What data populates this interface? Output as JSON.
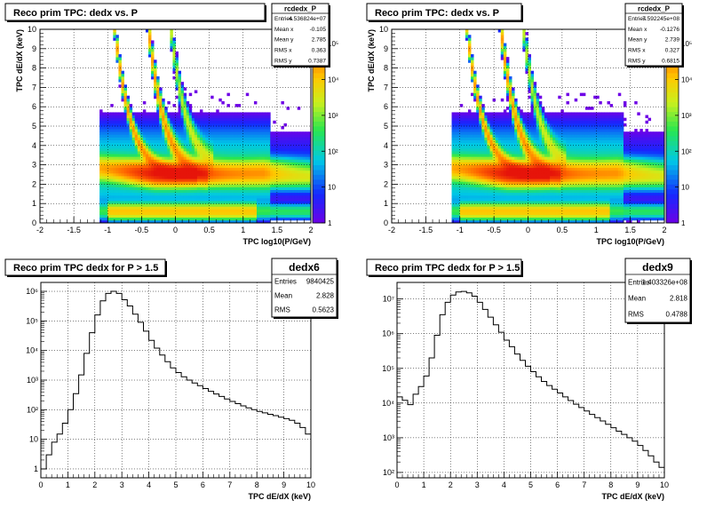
{
  "chart_data": [
    {
      "type": "heatmap",
      "title": "Reco prim TPC: dedx vs. P",
      "xlabel": "TPC log10(P/GeV)",
      "ylabel": "TPC dE/dX (keV)",
      "xlim": [
        -2,
        2
      ],
      "ylim": [
        0,
        10
      ],
      "x_ticks": [
        "-2",
        "-1.5",
        "-1",
        "-0.5",
        "0",
        "0.5",
        "1",
        "1.5",
        "2"
      ],
      "y_ticks": [
        "0",
        "1",
        "2",
        "3",
        "4",
        "5",
        "6",
        "7",
        "8",
        "9",
        "10"
      ],
      "zscale": "log",
      "z_ticks": [
        "1",
        "10",
        "10²",
        "10³",
        "10⁴",
        "10⁵"
      ],
      "grid": true,
      "stats": {
        "name": "rcdedx_P",
        "rows": [
          {
            "label": "Entries",
            "value": "4.536824e+07"
          },
          {
            "label": "Mean x",
            "value": "-0.105"
          },
          {
            "label": "Mean y",
            "value": "2.785"
          },
          {
            "label": "RMS x",
            "value": "0.363"
          },
          {
            "label": "RMS y",
            "value": "0.7387"
          }
        ]
      }
    },
    {
      "type": "heatmap",
      "title": "Reco prim TPC: dedx vs. P",
      "xlabel": "TPC log10(P/GeV)",
      "ylabel": "TPC dE/dX (keV)",
      "xlim": [
        -2,
        2
      ],
      "ylim": [
        0,
        10
      ],
      "x_ticks": [
        "-2",
        "-1.5",
        "-1",
        "-0.5",
        "0",
        "0.5",
        "1",
        "1.5",
        "2"
      ],
      "y_ticks": [
        "0",
        "1",
        "2",
        "3",
        "4",
        "5",
        "6",
        "7",
        "8",
        "9",
        "10"
      ],
      "zscale": "log",
      "z_ticks": [
        "1",
        "10",
        "10²",
        "10³",
        "10⁴",
        "10⁵"
      ],
      "grid": true,
      "stats": {
        "name": "rcdedx_P",
        "rows": [
          {
            "label": "Entries",
            "value": "7.592245e+08"
          },
          {
            "label": "Mean x",
            "value": "-0.1276"
          },
          {
            "label": "Mean y",
            "value": "2.739"
          },
          {
            "label": "RMS x",
            "value": "0.327"
          },
          {
            "label": "RMS y",
            "value": "0.6815"
          }
        ]
      }
    },
    {
      "type": "line",
      "title": "Reco prim TPC dedx for P > 1.5",
      "xlabel": "TPC dE/dX (keV)",
      "ylabel": "",
      "xlim": [
        0,
        10
      ],
      "yscale": "log",
      "ylim": [
        0.5,
        2000000
      ],
      "x_ticks": [
        "0",
        "1",
        "2",
        "3",
        "4",
        "5",
        "6",
        "7",
        "8",
        "9",
        "10"
      ],
      "y_ticks": [
        "1",
        "10",
        "10²",
        "10³",
        "10⁴",
        "10⁵",
        "10⁶"
      ],
      "grid": true,
      "stats": {
        "name": "dedx6",
        "rows": [
          {
            "label": "Entries",
            "value": "9840425"
          },
          {
            "label": "Mean",
            "value": "2.828"
          },
          {
            "label": "RMS",
            "value": "0.5623"
          }
        ]
      },
      "x": [
        0.1,
        0.3,
        0.5,
        0.7,
        0.9,
        1.1,
        1.3,
        1.5,
        1.7,
        1.9,
        2.1,
        2.3,
        2.5,
        2.7,
        2.9,
        3.1,
        3.3,
        3.5,
        3.7,
        3.9,
        4.1,
        4.3,
        4.5,
        4.7,
        4.9,
        5.1,
        5.3,
        5.5,
        5.7,
        5.9,
        6.1,
        6.3,
        6.5,
        6.7,
        6.9,
        7.1,
        7.3,
        7.5,
        7.7,
        7.9,
        8.1,
        8.3,
        8.5,
        8.7,
        8.9,
        9.1,
        9.3,
        9.5,
        9.7,
        9.9
      ],
      "y": [
        1,
        3,
        8,
        15,
        35,
        100,
        350,
        1500,
        8000,
        40000,
        160000,
        480000,
        850000,
        1000000,
        850000,
        520000,
        320000,
        170000,
        90000,
        45000,
        22000,
        12000,
        7000,
        4200,
        2600,
        1800,
        1300,
        1000,
        800,
        650,
        520,
        420,
        340,
        280,
        230,
        190,
        160,
        135,
        115,
        100,
        88,
        78,
        70,
        63,
        56,
        50,
        44,
        35,
        25,
        15
      ]
    },
    {
      "type": "line",
      "title": "Reco prim TPC dedx for P > 1.5",
      "xlabel": "TPC dE/dX (keV)",
      "ylabel": "",
      "xlim": [
        0,
        10
      ],
      "yscale": "log",
      "ylim": [
        70,
        30000000
      ],
      "x_ticks": [
        "0",
        "1",
        "2",
        "3",
        "4",
        "5",
        "6",
        "7",
        "8",
        "9",
        "10"
      ],
      "y_ticks": [
        "10²",
        "10³",
        "10⁴",
        "10⁵",
        "10⁶",
        "10⁷"
      ],
      "grid": true,
      "stats": {
        "name": "dedx9",
        "rows": [
          {
            "label": "Entries",
            "value": "1.403326e+08"
          },
          {
            "label": "Mean",
            "value": "2.818"
          },
          {
            "label": "RMS",
            "value": "0.4788"
          }
        ]
      },
      "x": [
        0.1,
        0.3,
        0.5,
        0.7,
        0.9,
        1.1,
        1.3,
        1.5,
        1.7,
        1.9,
        2.1,
        2.3,
        2.5,
        2.7,
        2.9,
        3.1,
        3.3,
        3.5,
        3.7,
        3.9,
        4.1,
        4.3,
        4.5,
        4.7,
        4.9,
        5.1,
        5.3,
        5.5,
        5.7,
        5.9,
        6.1,
        6.3,
        6.5,
        6.7,
        6.9,
        7.1,
        7.3,
        7.5,
        7.7,
        7.9,
        8.1,
        8.3,
        8.5,
        8.7,
        8.9,
        9.1,
        9.3,
        9.5,
        9.7,
        9.9
      ],
      "y": [
        15000,
        12000,
        9000,
        18000,
        30000,
        60000,
        200000,
        900000,
        3500000,
        8000000,
        13000000,
        16000000,
        16500000,
        15000000,
        12000000,
        8000000,
        5000000,
        3000000,
        1800000,
        1100000,
        650000,
        420000,
        260000,
        170000,
        115000,
        80000,
        57000,
        42000,
        32000,
        25000,
        19500,
        15000,
        11800,
        9300,
        7400,
        5900,
        4700,
        3800,
        3050,
        2450,
        1950,
        1550,
        1250,
        1000,
        800,
        600,
        430,
        300,
        200,
        140
      ]
    }
  ]
}
